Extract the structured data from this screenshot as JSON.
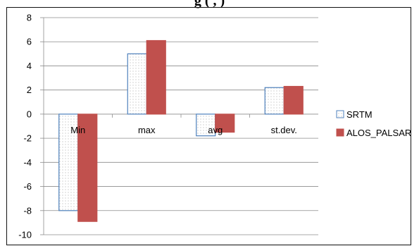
{
  "top_cut_text": "g  (        ,        )",
  "chart_data": {
    "type": "bar",
    "categories": [
      "Min",
      "max",
      "avg",
      "st.dev."
    ],
    "series": [
      {
        "name": "SRTM",
        "values": [
          -8,
          5,
          -1.8,
          2.2
        ],
        "fill": "#ffffff",
        "stroke": "#4f81bd",
        "pattern": "dotted"
      },
      {
        "name": "ALOS_PALSAR",
        "values": [
          -8.9,
          6.1,
          -1.5,
          2.3
        ],
        "fill": "#c0504d",
        "stroke": "#c0504d"
      }
    ],
    "ylim": [
      -10,
      8
    ],
    "yticks": [
      8,
      6,
      4,
      2,
      0,
      -2,
      -4,
      -6,
      -8,
      -10
    ],
    "grid": true,
    "legend": "right",
    "xlabel": "",
    "ylabel": "",
    "title": ""
  }
}
